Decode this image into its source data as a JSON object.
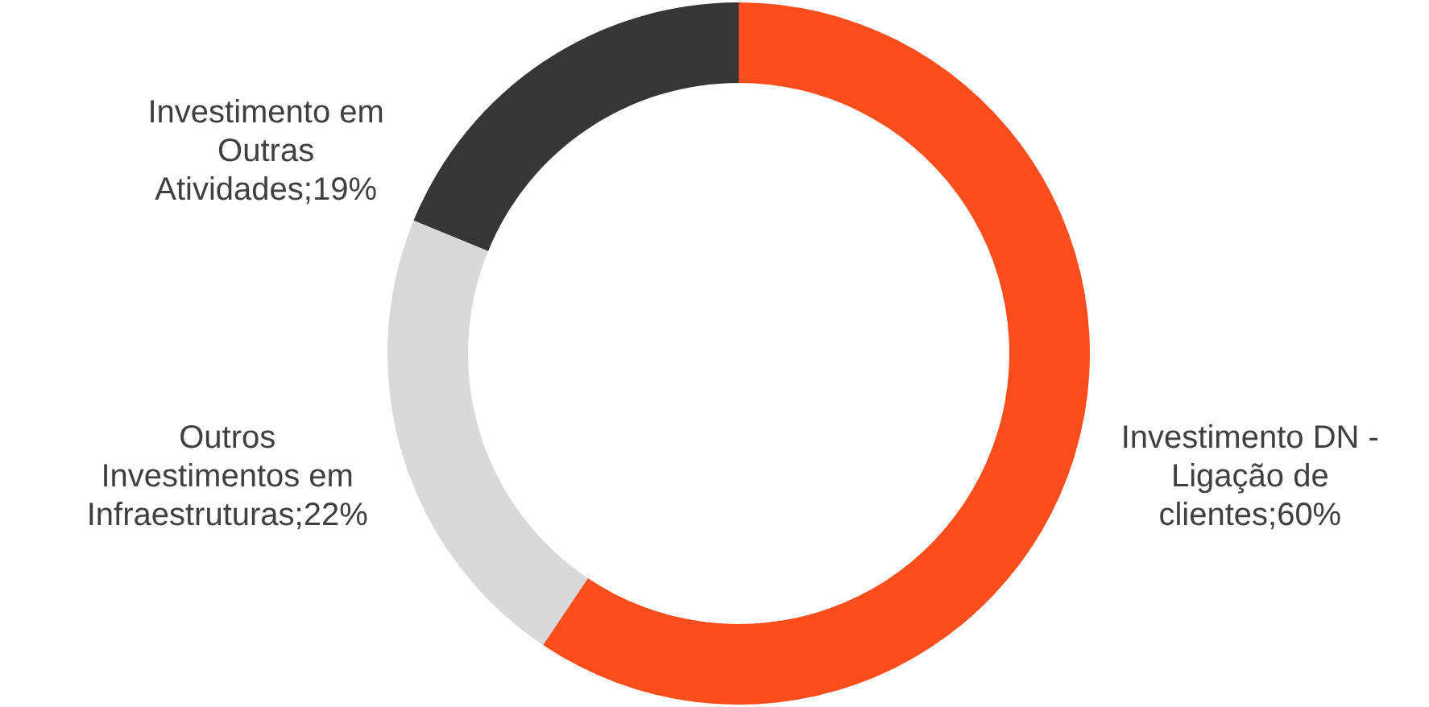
{
  "chart_data": {
    "type": "donut",
    "categories": [
      "Investimento DN - Ligação de clientes",
      "Outros Investimentos em Infraestruturas",
      "Investimento em Outras Atividades"
    ],
    "values": [
      60,
      22,
      19
    ],
    "value_labels": [
      "60%",
      "22%",
      "19%"
    ],
    "colors": [
      "#fc4e1c",
      "#d9d9d9",
      "#363636"
    ]
  }
}
